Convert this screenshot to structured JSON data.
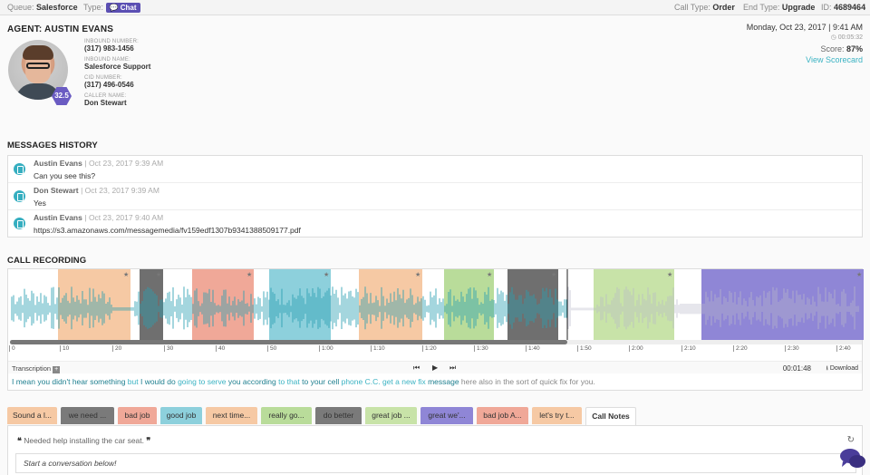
{
  "topbar": {
    "queue_label": "Queue:",
    "queue_value": "Salesforce",
    "type_label": "Type:",
    "type_value": "Chat",
    "call_type_label": "Call Type:",
    "call_type_value": "Order",
    "end_type_label": "End Type:",
    "end_type_value": "Upgrade",
    "id_label": "ID:",
    "id_value": "4689464"
  },
  "agent": {
    "title": "AGENT: AUSTIN EVANS",
    "score_badge": "32.5",
    "fields": [
      {
        "label": "INBOUND NUMBER:",
        "value": "(317) 983-1456"
      },
      {
        "label": "INBOUND NAME:",
        "value": "Salesforce Support"
      },
      {
        "label": "CID NUMBER:",
        "value": "(317) 496-0546"
      },
      {
        "label": "CALLER NAME:",
        "value": "Don Stewart"
      }
    ]
  },
  "meta": {
    "datetime": "Monday, Oct 23, 2017 | 9:41 AM",
    "duration": "00:05:32",
    "score_label": "Score:",
    "score_value": "87%",
    "scorecard_link": "View Scorecard"
  },
  "messages_section": {
    "title": "MESSAGES HISTORY",
    "items": [
      {
        "sender": "Austin Evans",
        "time": "| Oct 23, 2017 9:39 AM",
        "text": "Can you see this?"
      },
      {
        "sender": "Don Stewart",
        "time": "| Oct 23, 2017 9:39 AM",
        "text": "Yes"
      },
      {
        "sender": "Austin Evans",
        "time": "| Oct 23, 2017 9:40 AM",
        "text": "https://s3.amazonaws.com/messagemedia/fv159edf1307b9341388509177.pdf"
      }
    ]
  },
  "recording": {
    "title": "CALL RECORDING",
    "ticks": [
      "0",
      "10",
      "20",
      "30",
      "40",
      "50",
      "1:00",
      "1:10",
      "1:20",
      "1:30",
      "1:40",
      "1:50",
      "2:00",
      "2:10",
      "2:20",
      "2:30",
      "2:40"
    ],
    "transcription_label": "Transcription",
    "current_time": "00:01:48",
    "download_label": "Download",
    "segment_colors": [
      "#f6c9a4",
      "#6f6f6f",
      "#f0a898",
      "#8dd0dc",
      "#f6c9a4",
      "#b9dc9a",
      "#6f6f6f",
      "#c8e3a8",
      "#8f86d6"
    ],
    "transcript": [
      {
        "text": "I mean you didn't hear something",
        "style": "t0"
      },
      {
        "text": " but ",
        "style": "t1"
      },
      {
        "text": "I would do",
        "style": "t0"
      },
      {
        "text": " going to serve ",
        "style": "t1"
      },
      {
        "text": "you according",
        "style": "t0"
      },
      {
        "text": " to that ",
        "style": "t1"
      },
      {
        "text": "to your cell",
        "style": "t0"
      },
      {
        "text": " phone C.C. ",
        "style": "t1"
      },
      {
        "text": "get a new fix",
        "style": "t1"
      },
      {
        "text": " message ",
        "style": "t0"
      },
      {
        "text": "here also in the sort of quick fix for you.",
        "style": "t2"
      }
    ]
  },
  "tabs": [
    {
      "label": "Sound a l...",
      "color": "#f6c9a4"
    },
    {
      "label": "we need ...",
      "color": "#7a7a7a"
    },
    {
      "label": "bad job",
      "color": "#f0a898"
    },
    {
      "label": "good job",
      "color": "#8dd0dc"
    },
    {
      "label": "next time...",
      "color": "#f6c9a4"
    },
    {
      "label": "really go...",
      "color": "#b9dc9a"
    },
    {
      "label": "do better",
      "color": "#7a7a7a"
    },
    {
      "label": "great job ...",
      "color": "#c8e3a8"
    },
    {
      "label": "great we'...",
      "color": "#8f86d6"
    },
    {
      "label": "bad job A...",
      "color": "#f0a898"
    },
    {
      "label": "let's try t...",
      "color": "#f6c9a4"
    },
    {
      "label": "Call Notes",
      "color": "#ffffff"
    }
  ],
  "notes": {
    "quote": "Needed help installing the car seat.",
    "input_placeholder": "Start a conversation below!"
  }
}
